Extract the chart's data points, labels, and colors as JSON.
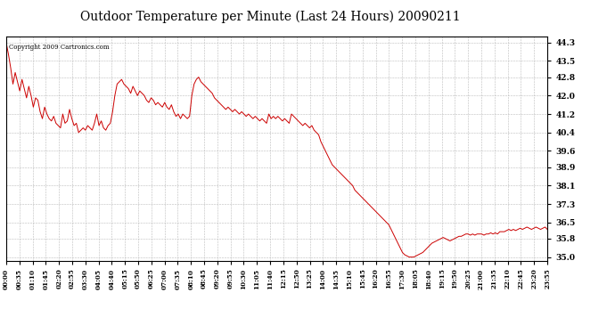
{
  "title": "Outdoor Temperature per Minute (Last 24 Hours) 20090211",
  "copyright_text": "Copyright 2009 Cartronics.com",
  "line_color": "#cc0000",
  "background_color": "#ffffff",
  "grid_color": "#bbbbbb",
  "title_fontsize": 11,
  "yticks": [
    35.0,
    35.8,
    36.5,
    37.3,
    38.1,
    38.9,
    39.6,
    40.4,
    41.2,
    42.0,
    42.8,
    43.5,
    44.3
  ],
  "ylim": [
    34.85,
    44.55
  ],
  "xtick_labels": [
    "00:00",
    "00:35",
    "01:10",
    "01:45",
    "02:20",
    "02:55",
    "03:30",
    "04:05",
    "04:40",
    "05:15",
    "05:50",
    "06:25",
    "07:00",
    "07:35",
    "08:10",
    "08:45",
    "09:20",
    "09:55",
    "10:30",
    "11:05",
    "11:40",
    "12:15",
    "12:50",
    "13:25",
    "14:00",
    "14:35",
    "15:10",
    "15:45",
    "16:20",
    "16:55",
    "17:30",
    "18:05",
    "18:40",
    "19:15",
    "19:50",
    "20:25",
    "21:00",
    "21:35",
    "22:10",
    "22:45",
    "23:20",
    "23:55"
  ],
  "data_points": [
    44.3,
    43.8,
    43.2,
    42.5,
    43.0,
    42.6,
    42.2,
    42.7,
    42.3,
    41.9,
    42.4,
    42.0,
    41.5,
    41.9,
    41.8,
    41.3,
    41.0,
    41.5,
    41.2,
    41.0,
    40.9,
    41.1,
    40.8,
    40.7,
    40.6,
    41.2,
    40.8,
    40.9,
    41.4,
    41.0,
    40.7,
    40.8,
    40.4,
    40.5,
    40.6,
    40.5,
    40.7,
    40.6,
    40.5,
    40.8,
    41.2,
    40.7,
    40.9,
    40.6,
    40.5,
    40.7,
    40.8,
    41.3,
    42.0,
    42.5,
    42.6,
    42.7,
    42.5,
    42.4,
    42.3,
    42.1,
    42.4,
    42.2,
    42.0,
    42.2,
    42.1,
    42.0,
    41.8,
    41.7,
    41.9,
    41.8,
    41.6,
    41.7,
    41.6,
    41.5,
    41.7,
    41.5,
    41.4,
    41.6,
    41.3,
    41.1,
    41.2,
    41.0,
    41.2,
    41.1,
    41.0,
    41.1,
    42.0,
    42.5,
    42.7,
    42.8,
    42.6,
    42.5,
    42.4,
    42.3,
    42.2,
    42.1,
    41.9,
    41.8,
    41.7,
    41.6,
    41.5,
    41.4,
    41.5,
    41.4,
    41.3,
    41.4,
    41.3,
    41.2,
    41.3,
    41.2,
    41.1,
    41.2,
    41.1,
    41.0,
    41.1,
    41.0,
    40.9,
    41.0,
    40.9,
    40.8,
    41.2,
    41.0,
    41.1,
    41.0,
    41.1,
    41.0,
    40.9,
    41.0,
    40.9,
    40.8,
    41.2,
    41.1,
    41.0,
    40.9,
    40.8,
    40.7,
    40.8,
    40.7,
    40.6,
    40.7,
    40.5,
    40.4,
    40.3,
    40.0,
    39.8,
    39.6,
    39.4,
    39.2,
    39.0,
    38.9,
    38.8,
    38.7,
    38.6,
    38.5,
    38.4,
    38.3,
    38.2,
    38.1,
    37.9,
    37.8,
    37.7,
    37.6,
    37.5,
    37.4,
    37.3,
    37.2,
    37.1,
    37.0,
    36.9,
    36.8,
    36.7,
    36.6,
    36.5,
    36.4,
    36.2,
    36.0,
    35.8,
    35.6,
    35.4,
    35.2,
    35.1,
    35.05,
    35.0,
    35.0,
    35.0,
    35.05,
    35.1,
    35.15,
    35.2,
    35.3,
    35.4,
    35.5,
    35.6,
    35.65,
    35.7,
    35.75,
    35.8,
    35.85,
    35.8,
    35.75,
    35.7,
    35.75,
    35.8,
    35.85,
    35.9,
    35.9,
    35.95,
    36.0,
    36.0,
    35.95,
    36.0,
    35.95,
    36.0,
    36.0,
    36.0,
    35.95,
    36.0,
    36.0,
    36.05,
    36.0,
    36.05,
    36.0,
    36.1,
    36.1,
    36.1,
    36.15,
    36.2,
    36.15,
    36.2,
    36.15,
    36.2,
    36.25,
    36.2,
    36.25,
    36.3,
    36.25,
    36.2,
    36.25,
    36.3,
    36.25,
    36.2,
    36.25,
    36.3,
    36.2
  ]
}
